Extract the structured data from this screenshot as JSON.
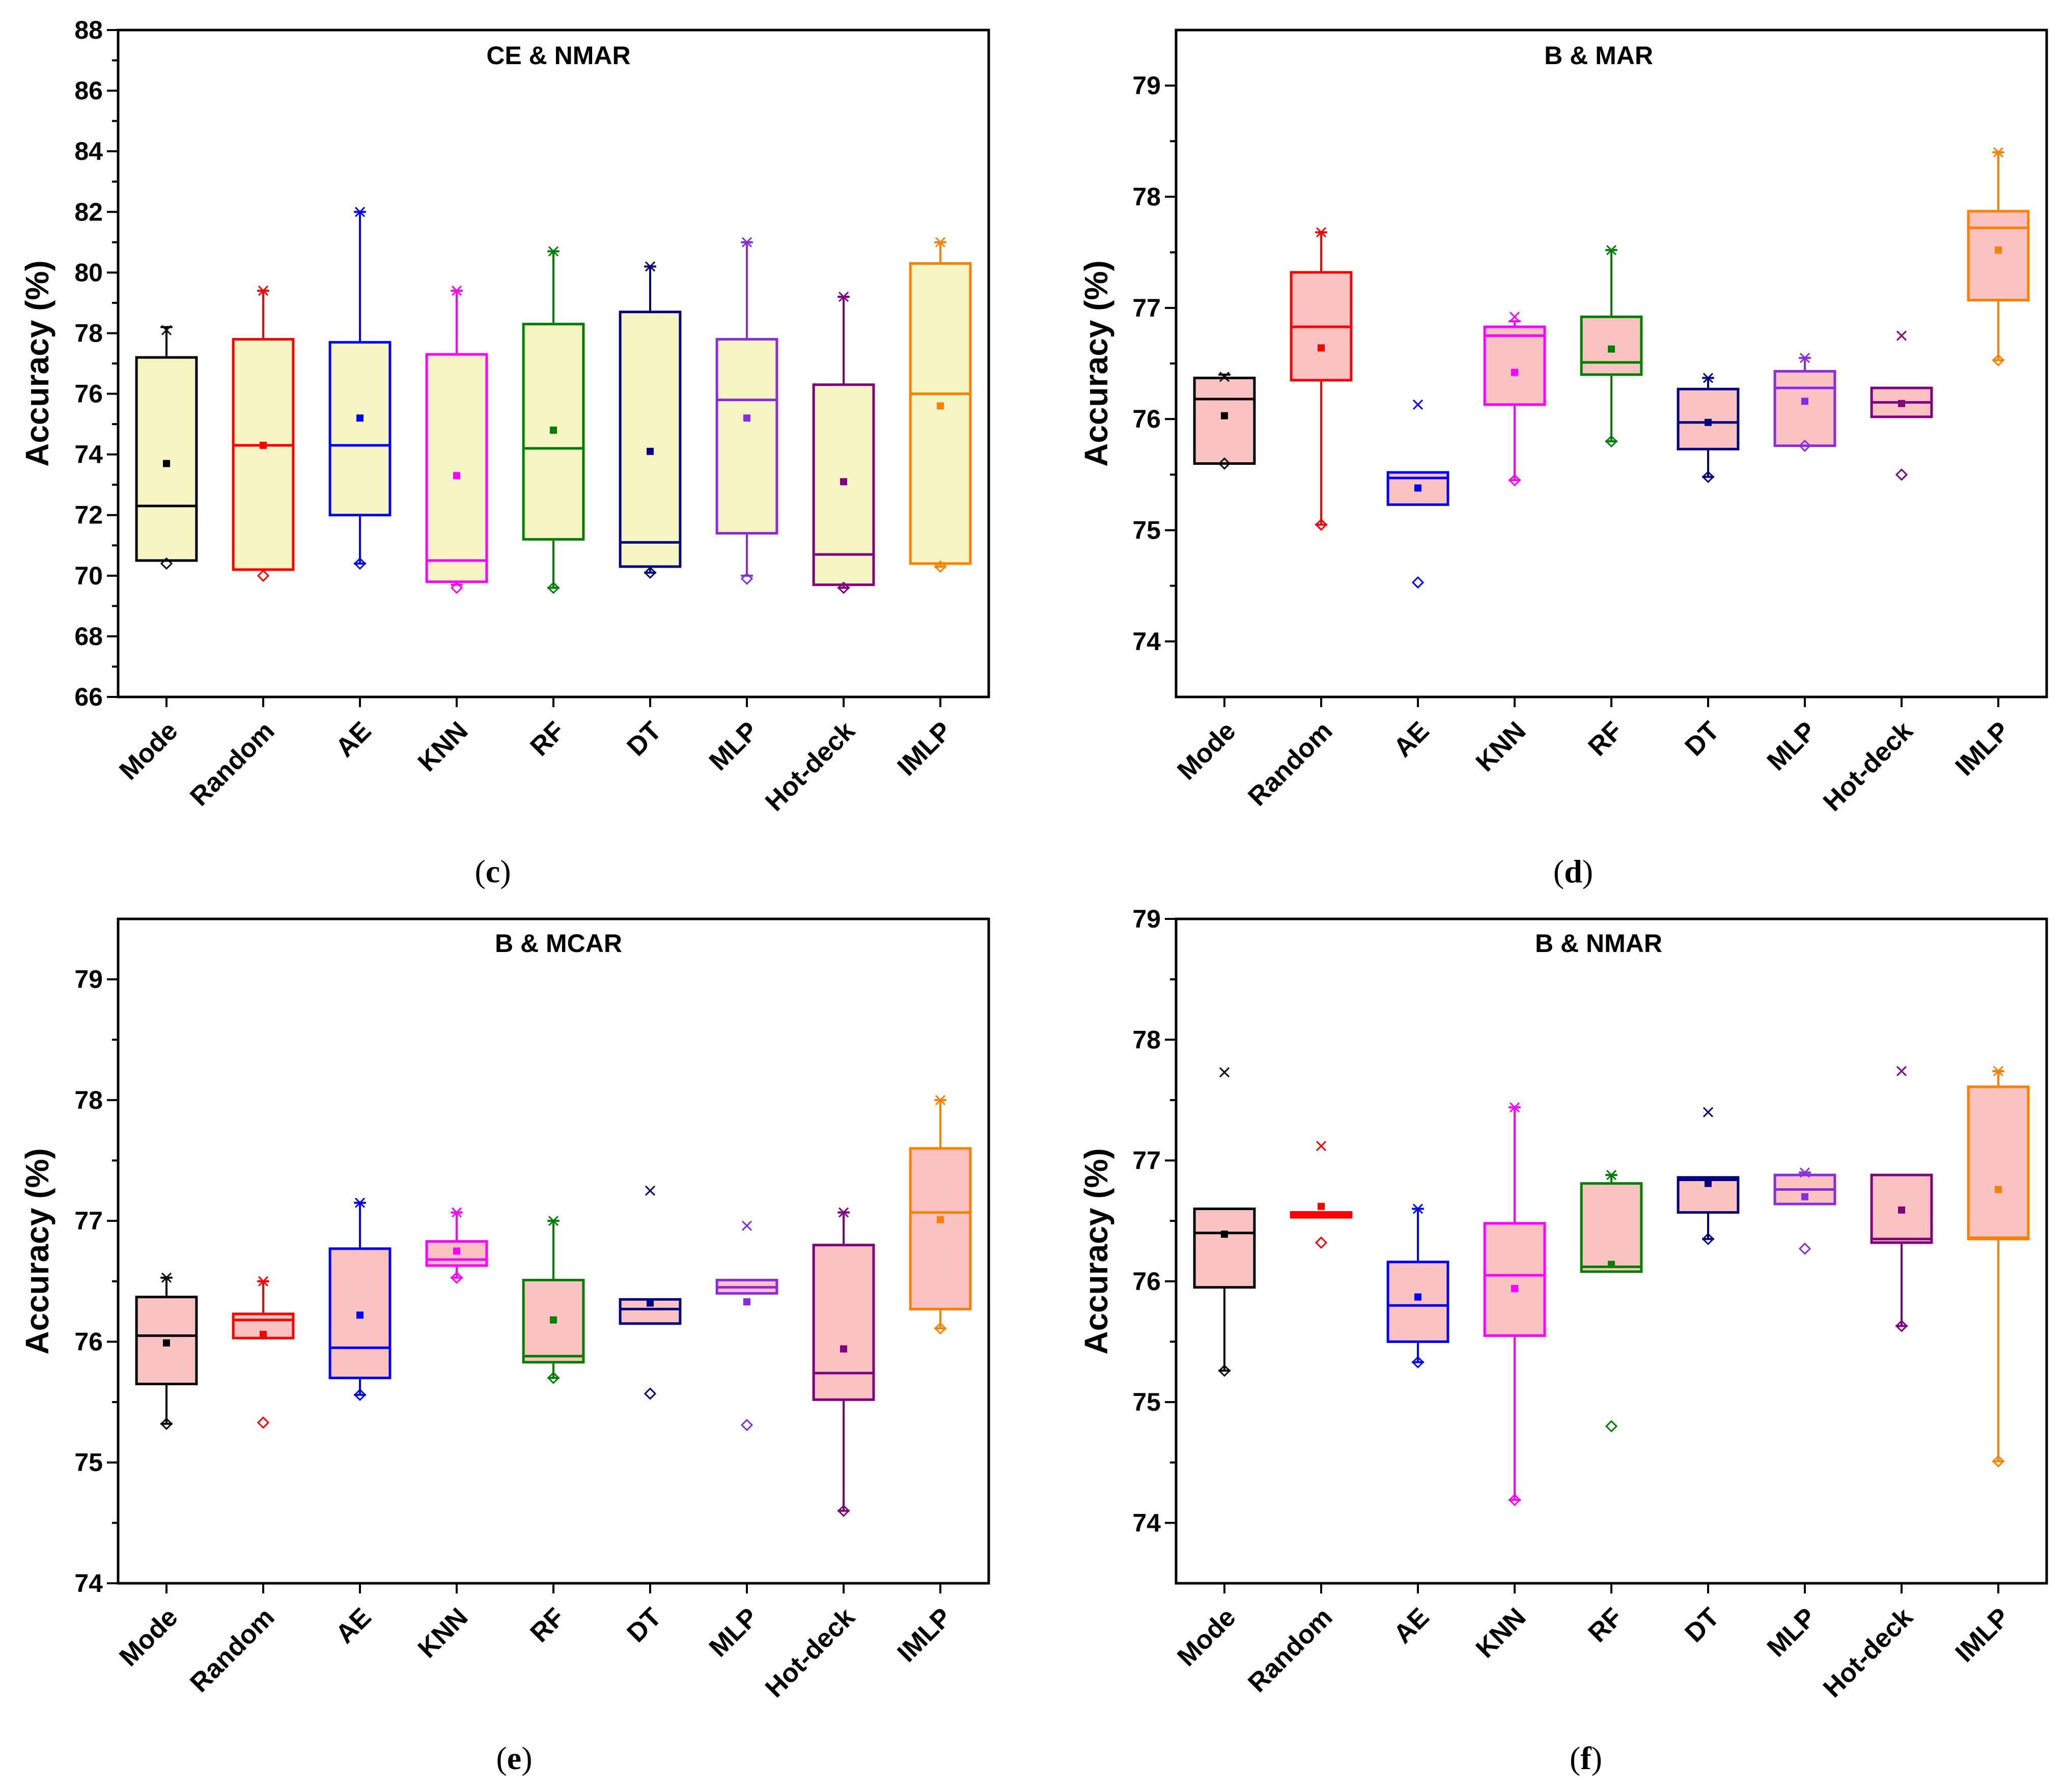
{
  "figure": {
    "colors": {
      "yellow_fill": "#f5f5c4",
      "pink_fill": "#fbc2c2"
    }
  },
  "chart_data": [
    {
      "type": "box",
      "caption": "c",
      "title": "CE & NMAR",
      "ylabel": "Accuracy (%)",
      "ylim": [
        66,
        88
      ],
      "yticks": [
        66,
        68,
        70,
        72,
        74,
        76,
        78,
        80,
        82,
        84,
        86,
        88
      ],
      "box_fill": "yellow",
      "categories": [
        "Mode",
        "Random",
        "AE",
        "KNN",
        "RF",
        "DT",
        "MLP",
        "Hot-deck",
        "IMLP"
      ],
      "colors": [
        "#000000",
        "#ff0000",
        "#0000ff",
        "#ff00ff",
        "#008000",
        "#000080",
        "#8a2be2",
        "#800080",
        "#ff8000"
      ],
      "boxes": [
        {
          "q1": 70.5,
          "median": 72.3,
          "q3": 77.2,
          "low": 70.5,
          "high": 78.2,
          "mean": 73.7,
          "min": 70.4,
          "max": 78.1
        },
        {
          "q1": 70.2,
          "median": 74.3,
          "q3": 77.8,
          "low": 70.2,
          "high": 79.4,
          "mean": 74.3,
          "min": 70.0,
          "max": 79.4
        },
        {
          "q1": 72.0,
          "median": 74.3,
          "q3": 77.7,
          "low": 70.4,
          "high": 82.0,
          "mean": 75.2,
          "min": 70.4,
          "max": 82.0
        },
        {
          "q1": 69.8,
          "median": 70.5,
          "q3": 77.3,
          "low": 69.7,
          "high": 79.4,
          "mean": 73.3,
          "min": 69.6,
          "max": 79.4
        },
        {
          "q1": 71.2,
          "median": 74.2,
          "q3": 78.3,
          "low": 69.6,
          "high": 80.7,
          "mean": 74.8,
          "min": 69.6,
          "max": 80.7
        },
        {
          "q1": 70.3,
          "median": 71.1,
          "q3": 78.7,
          "low": 70.1,
          "high": 80.2,
          "mean": 74.1,
          "min": 70.1,
          "max": 80.2
        },
        {
          "q1": 71.4,
          "median": 75.8,
          "q3": 77.8,
          "low": 70.0,
          "high": 81.0,
          "mean": 75.2,
          "min": 69.9,
          "max": 81.0
        },
        {
          "q1": 69.7,
          "median": 70.7,
          "q3": 76.3,
          "low": 69.6,
          "high": 79.2,
          "mean": 73.1,
          "min": 69.6,
          "max": 79.2
        },
        {
          "q1": 70.4,
          "median": 76.0,
          "q3": 80.3,
          "low": 70.3,
          "high": 81.0,
          "mean": 75.6,
          "min": 70.3,
          "max": 81.0
        }
      ]
    },
    {
      "type": "box",
      "caption": "d",
      "title": "B & MAR",
      "ylabel": "Accuracy (%)",
      "ylim": [
        73.5,
        79.5
      ],
      "yticks": [
        74,
        75,
        76,
        77,
        78,
        79
      ],
      "box_fill": "pink",
      "categories": [
        "Mode",
        "Random",
        "AE",
        "KNN",
        "RF",
        "DT",
        "MLP",
        "Hot-deck",
        "IMLP"
      ],
      "colors": [
        "#000000",
        "#ff0000",
        "#0000ff",
        "#ff00ff",
        "#008000",
        "#000080",
        "#8a2be2",
        "#800080",
        "#ff8000"
      ],
      "boxes": [
        {
          "q1": 75.6,
          "median": 76.18,
          "q3": 76.37,
          "low": 75.6,
          "high": 76.4,
          "mean": 76.03,
          "min": 75.6,
          "max": 76.38
        },
        {
          "q1": 76.35,
          "median": 76.83,
          "q3": 77.32,
          "low": 75.05,
          "high": 77.68,
          "mean": 76.64,
          "min": 75.05,
          "max": 77.68
        },
        {
          "q1": 75.23,
          "median": 75.47,
          "q3": 75.52,
          "low": 75.23,
          "high": 75.52,
          "mean": 75.38,
          "min": 74.53,
          "max": 76.13
        },
        {
          "q1": 76.13,
          "median": 76.75,
          "q3": 76.83,
          "low": 75.45,
          "high": 76.88,
          "mean": 76.42,
          "min": 75.45,
          "max": 76.92
        },
        {
          "q1": 76.4,
          "median": 76.51,
          "q3": 76.92,
          "low": 75.8,
          "high": 77.52,
          "mean": 76.63,
          "min": 75.8,
          "max": 77.52
        },
        {
          "q1": 75.73,
          "median": 75.97,
          "q3": 76.27,
          "low": 75.48,
          "high": 76.37,
          "mean": 75.97,
          "min": 75.48,
          "max": 76.37
        },
        {
          "q1": 75.76,
          "median": 76.28,
          "q3": 76.43,
          "low": 75.76,
          "high": 76.55,
          "mean": 76.16,
          "min": 75.76,
          "max": 76.55
        },
        {
          "q1": 76.02,
          "median": 76.15,
          "q3": 76.28,
          "low": 76.02,
          "high": 76.28,
          "mean": 76.14,
          "min": 75.5,
          "max": 76.75
        },
        {
          "q1": 77.07,
          "median": 77.72,
          "q3": 77.87,
          "low": 76.53,
          "high": 78.4,
          "mean": 77.52,
          "min": 76.53,
          "max": 78.4
        }
      ]
    },
    {
      "type": "box",
      "caption": "e",
      "title": "B & MCAR",
      "ylabel": "Accuracy (%)",
      "ylim": [
        74,
        79.5
      ],
      "yticks": [
        74,
        75,
        76,
        77,
        78,
        79
      ],
      "box_fill": "pink",
      "categories": [
        "Mode",
        "Random",
        "AE",
        "KNN",
        "RF",
        "DT",
        "MLP",
        "Hot-deck",
        "IMLP"
      ],
      "colors": [
        "#000000",
        "#ff0000",
        "#0000ff",
        "#ff00ff",
        "#008000",
        "#000080",
        "#8a2be2",
        "#800080",
        "#ff8000"
      ],
      "boxes": [
        {
          "q1": 75.65,
          "median": 76.05,
          "q3": 76.37,
          "low": 75.32,
          "high": 76.53,
          "mean": 75.99,
          "min": 75.32,
          "max": 76.53
        },
        {
          "q1": 76.03,
          "median": 76.18,
          "q3": 76.23,
          "low": 76.03,
          "high": 76.5,
          "mean": 76.06,
          "min": 75.33,
          "max": 76.5
        },
        {
          "q1": 75.7,
          "median": 75.95,
          "q3": 76.77,
          "low": 75.56,
          "high": 77.15,
          "mean": 76.22,
          "min": 75.56,
          "max": 77.15
        },
        {
          "q1": 76.63,
          "median": 76.68,
          "q3": 76.83,
          "low": 76.53,
          "high": 77.07,
          "mean": 76.75,
          "min": 76.53,
          "max": 77.07
        },
        {
          "q1": 75.83,
          "median": 75.88,
          "q3": 76.51,
          "low": 75.7,
          "high": 77.0,
          "mean": 76.18,
          "min": 75.7,
          "max": 77.0
        },
        {
          "q1": 76.15,
          "median": 76.27,
          "q3": 76.35,
          "low": 76.15,
          "high": 76.35,
          "mean": 76.32,
          "min": 75.57,
          "max": 77.25
        },
        {
          "q1": 76.4,
          "median": 76.45,
          "q3": 76.51,
          "low": 76.4,
          "high": 76.51,
          "mean": 76.33,
          "min": 75.31,
          "max": 76.96
        },
        {
          "q1": 75.52,
          "median": 75.74,
          "q3": 76.8,
          "low": 74.6,
          "high": 77.07,
          "mean": 75.94,
          "min": 74.6,
          "max": 77.07
        },
        {
          "q1": 76.27,
          "median": 77.07,
          "q3": 77.6,
          "low": 76.11,
          "high": 78.0,
          "mean": 77.01,
          "min": 76.11,
          "max": 78.0
        }
      ]
    },
    {
      "type": "box",
      "caption": "f",
      "title": "B & NMAR",
      "ylabel": "Accuracy (%)",
      "ylim": [
        73.5,
        79
      ],
      "yticks": [
        74,
        75,
        76,
        77,
        78,
        79
      ],
      "box_fill": "pink",
      "categories": [
        "Mode",
        "Random",
        "AE",
        "KNN",
        "RF",
        "DT",
        "MLP",
        "Hot-deck",
        "IMLP"
      ],
      "colors": [
        "#000000",
        "#ff0000",
        "#0000ff",
        "#ff00ff",
        "#008000",
        "#000080",
        "#8a2be2",
        "#800080",
        "#ff8000"
      ],
      "boxes": [
        {
          "q1": 75.95,
          "median": 76.4,
          "q3": 76.6,
          "low": 75.26,
          "high": 76.6,
          "mean": 76.39,
          "min": 75.26,
          "max": 77.73
        },
        {
          "q1": 76.53,
          "median": 76.55,
          "q3": 76.57,
          "low": 76.53,
          "high": 76.57,
          "mean": 76.62,
          "min": 76.32,
          "max": 77.12
        },
        {
          "q1": 75.5,
          "median": 75.8,
          "q3": 76.16,
          "low": 75.33,
          "high": 76.6,
          "mean": 75.87,
          "min": 75.33,
          "max": 76.6
        },
        {
          "q1": 75.55,
          "median": 76.05,
          "q3": 76.48,
          "low": 74.19,
          "high": 77.44,
          "mean": 75.94,
          "min": 74.19,
          "max": 77.44
        },
        {
          "q1": 76.08,
          "median": 76.12,
          "q3": 76.81,
          "low": 76.08,
          "high": 76.88,
          "mean": 76.14,
          "min": 74.8,
          "max": 76.88
        },
        {
          "q1": 76.57,
          "median": 76.84,
          "q3": 76.86,
          "low": 76.35,
          "high": 76.86,
          "mean": 76.81,
          "min": 76.35,
          "max": 77.4
        },
        {
          "q1": 76.64,
          "median": 76.76,
          "q3": 76.88,
          "low": 76.64,
          "high": 76.9,
          "mean": 76.7,
          "min": 76.27,
          "max": 76.9
        },
        {
          "q1": 76.32,
          "median": 76.35,
          "q3": 76.88,
          "low": 75.63,
          "high": 76.88,
          "mean": 76.59,
          "min": 75.63,
          "max": 77.74
        },
        {
          "q1": 76.35,
          "median": 76.36,
          "q3": 77.61,
          "low": 74.51,
          "high": 77.74,
          "mean": 76.76,
          "min": 74.51,
          "max": 77.74
        }
      ]
    }
  ]
}
